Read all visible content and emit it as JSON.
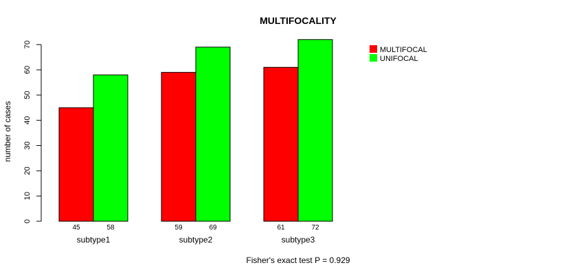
{
  "chart_data": {
    "type": "bar",
    "title": "MULTIFOCALITY",
    "xlabel": "",
    "ylabel": "number of cases",
    "footnote": "Fisher's exact test P = 0.929",
    "categories": [
      "subtype1",
      "subtype2",
      "subtype3"
    ],
    "series": [
      {
        "name": "MULTIFOCAL",
        "color": "#ff0000",
        "values": [
          45,
          59,
          61
        ]
      },
      {
        "name": "UNIFOCAL",
        "color": "#00ff00",
        "values": [
          58,
          69,
          72
        ]
      }
    ],
    "yticks": [
      0,
      10,
      20,
      30,
      40,
      50,
      60,
      70
    ],
    "ylim": [
      0,
      72
    ],
    "grid": false,
    "legend_position": "top-right",
    "value_labels_shown": true
  }
}
